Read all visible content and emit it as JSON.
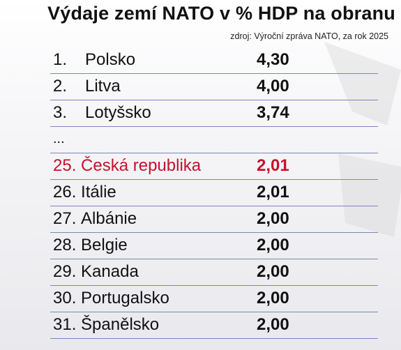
{
  "title": "Výdaje zemí NATO v % HDP na obranu",
  "source": "zdroj: Výroční zpráva NATO, za rok 2025",
  "colors": {
    "text": "#111111",
    "highlight": "#c8102e",
    "divider": "#7a86b8",
    "background": "#f2f2f5"
  },
  "chart_data": {
    "type": "table",
    "columns": [
      "rank",
      "country",
      "value"
    ],
    "rows": [
      {
        "rank": "1.",
        "country": "Polsko",
        "value": "4,30",
        "highlight": false
      },
      {
        "rank": "2.",
        "country": "Litva",
        "value": "4,00",
        "highlight": false
      },
      {
        "rank": "3.",
        "country": "Lotyšsko",
        "value": "3,74",
        "highlight": false
      },
      {
        "rank": "...",
        "country": "",
        "value": "",
        "highlight": false
      },
      {
        "rank": "25.",
        "country": "Česká republika",
        "value": "2,01",
        "highlight": true
      },
      {
        "rank": "26.",
        "country": "Itálie",
        "value": "2,01",
        "highlight": false
      },
      {
        "rank": "27.",
        "country": "Albánie",
        "value": "2,00",
        "highlight": false
      },
      {
        "rank": "28.",
        "country": "Belgie",
        "value": "2,00",
        "highlight": false
      },
      {
        "rank": "29.",
        "country": "Kanada",
        "value": "2,00",
        "highlight": false
      },
      {
        "rank": "30.",
        "country": "Portugalsko",
        "value": "2,00",
        "highlight": false
      },
      {
        "rank": "31.",
        "country": "Španělsko",
        "value": "2,00",
        "highlight": false
      }
    ]
  }
}
